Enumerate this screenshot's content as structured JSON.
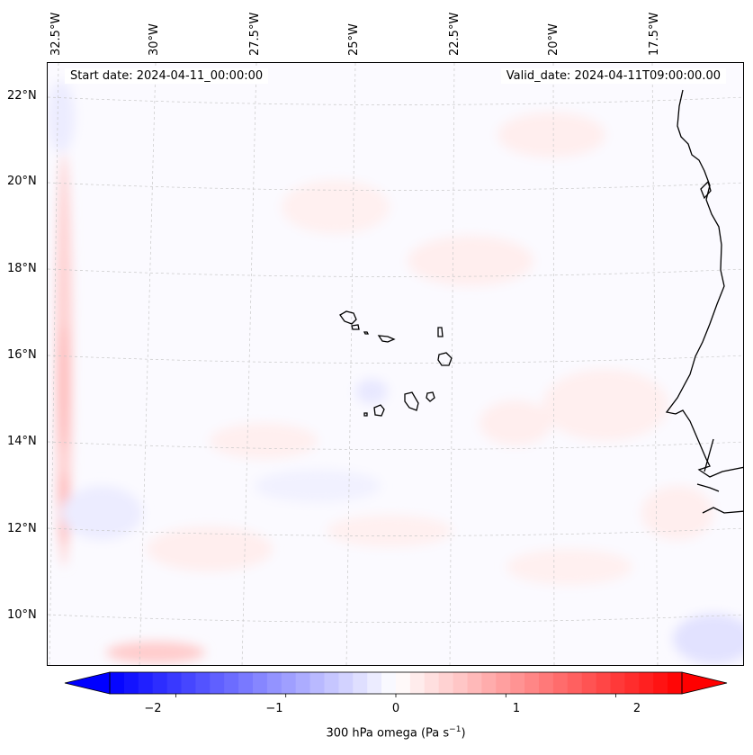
{
  "map": {
    "start_date": "Start date: 2024-04-11_00:00:00",
    "valid_date": "Valid_date: 2024-04-11T09:00:00.00",
    "lon_labels": [
      "32.5°W",
      "30°W",
      "27.5°W",
      "25°W",
      "22.5°W",
      "20°W",
      "17.5°W"
    ],
    "lat_labels": [
      "22°N",
      "20°N",
      "18°N",
      "16°N",
      "14°N",
      "12°N",
      "10°N"
    ],
    "field": "300 hPa omega",
    "region": "Cape Verde / West African coast",
    "features": [
      "coastline",
      "islands",
      "graticule"
    ]
  },
  "colorbar": {
    "label_main": "300 hPa omega (Pa s",
    "label_sup": "−1",
    "label_end": ")",
    "ticks": [
      "−2",
      "−1",
      "0",
      "1",
      "2"
    ],
    "tick_values": [
      -2,
      -1,
      0,
      1,
      2
    ],
    "vmin": -2.6,
    "vmax": 2.6,
    "colormap": "bwr",
    "colors": {
      "low": "#0000ff",
      "mid": "#ffffff",
      "high": "#ff0000"
    }
  }
}
